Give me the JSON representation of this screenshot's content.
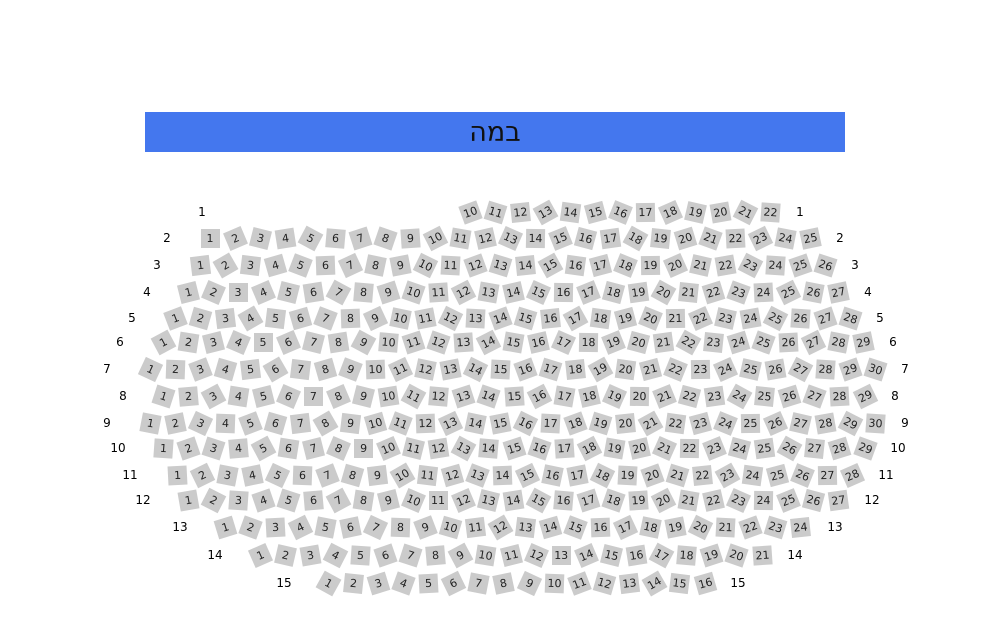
{
  "stage": {
    "label": "במה",
    "color": "#4477ee"
  },
  "seat_color": "#cbcbcb",
  "rows": [
    {
      "row": "1",
      "first_seat": 10,
      "last_seat": 22
    },
    {
      "row": "2",
      "first_seat": 1,
      "last_seat": 25
    },
    {
      "row": "3",
      "first_seat": 1,
      "last_seat": 26
    },
    {
      "row": "4",
      "first_seat": 1,
      "last_seat": 27
    },
    {
      "row": "5",
      "first_seat": 1,
      "last_seat": 28
    },
    {
      "row": "6",
      "first_seat": 1,
      "last_seat": 29
    },
    {
      "row": "7",
      "first_seat": 1,
      "last_seat": 30
    },
    {
      "row": "8",
      "first_seat": 1,
      "last_seat": 29
    },
    {
      "row": "9",
      "first_seat": 1,
      "last_seat": 30
    },
    {
      "row": "10",
      "first_seat": 1,
      "last_seat": 29
    },
    {
      "row": "11",
      "first_seat": 1,
      "last_seat": 28
    },
    {
      "row": "12",
      "first_seat": 1,
      "last_seat": 27
    },
    {
      "row": "13",
      "first_seat": 1,
      "last_seat": 24
    },
    {
      "row": "14",
      "first_seat": 1,
      "last_seat": 21
    },
    {
      "row": "15",
      "first_seat": 1,
      "last_seat": 16
    }
  ]
}
